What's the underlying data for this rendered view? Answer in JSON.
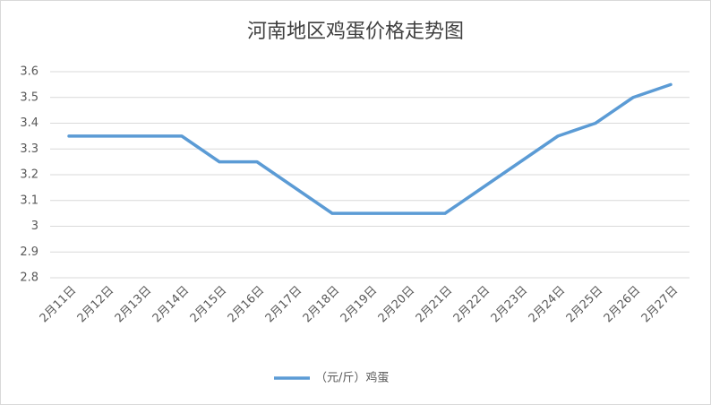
{
  "chart_data": {
    "type": "line",
    "title": "河南地区鸡蛋价格走势图",
    "categories": [
      "2月11日",
      "2月12日",
      "2月13日",
      "2月14日",
      "2月15日",
      "2月16日",
      "2月17日",
      "2月18日",
      "2月19日",
      "2月20日",
      "2月21日",
      "2月22日",
      "2月23日",
      "2月24日",
      "2月25日",
      "2月26日",
      "2月27日"
    ],
    "series": [
      {
        "name": "（元/斤）鸡蛋",
        "color": "#5b9bd5",
        "values": [
          3.35,
          3.35,
          3.35,
          3.35,
          3.25,
          3.25,
          3.15,
          3.05,
          3.05,
          3.05,
          3.05,
          3.15,
          3.25,
          3.35,
          3.4,
          3.5,
          3.55
        ]
      }
    ],
    "ylim": [
      2.8,
      3.6
    ],
    "yticks": [
      2.8,
      2.9,
      3,
      3.1,
      3.2,
      3.3,
      3.4,
      3.5,
      3.6
    ],
    "grid": true,
    "legend": "bottom"
  }
}
